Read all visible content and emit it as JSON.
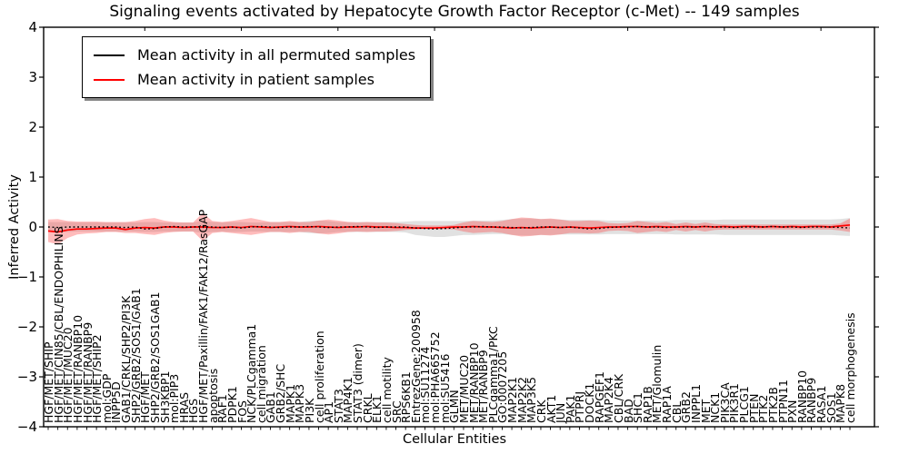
{
  "page": {
    "background": "#ffffff"
  },
  "chart_data": {
    "type": "line",
    "title": "Signaling events activated by Hepatocyte Growth Factor Receptor (c-Met) -- 149 samples",
    "xlabel": "Cellular Entities",
    "ylabel": "Inferred Activity",
    "ylim": [
      -4,
      4
    ],
    "yticks": [
      -4,
      -3,
      -2,
      -1,
      0,
      1,
      2,
      3,
      4
    ],
    "ytick_labels": [
      "−4",
      "−3",
      "−2",
      "−1",
      "0",
      "1",
      "2",
      "3",
      "4"
    ],
    "grid": false,
    "legend_position": "upper left",
    "legend": [
      {
        "label": "Mean activity in all permuted samples",
        "color": "#000000"
      },
      {
        "label": "Mean activity in patient samples",
        "color": "#ff0000"
      }
    ],
    "categories": [
      "HGF/MET/SHIP",
      "HGF/MET/CIN85/CBL/ENDOPHILINS",
      "HGF/MET/MUC20",
      "HGF/MET/RANBP10",
      "HGF/MET/RANBP9",
      "HGF/MET/SHIP2",
      "mol:GDP",
      "INPP5D",
      "GAB1/CRKL/SHP2/PI3K",
      "SHP2/GRB2/SOS1/GAB1",
      "HGF/MET",
      "SHP2/GRB2/SOS1GAB1",
      "SH3KBP1",
      "mol:PIP3",
      "HRAS",
      "HGS",
      "HGF/MET/Paxillin/FAK1/FAK12/RasGAP",
      "apoptosis",
      "RAF1",
      "PDPK1",
      "FOS",
      "NCK/PLCgamma1",
      "cell migration",
      "GAB1",
      "GRB2/SHC",
      "MAPK1",
      "MAPK3",
      "PI3K",
      "cell proliferation",
      "AP1",
      "STAT3",
      "MAP4K1",
      "STAT3 (dimer)",
      "CRKL",
      "ELK1",
      "cell motility",
      "SRC",
      "RPS6KB1",
      "EntrezGene:200958",
      "mol:SU11274",
      "mol:PHA665752",
      "mol:SU5416",
      "GLMN",
      "MET/MUC20",
      "MET/RANBP10",
      "MET/RANBP9",
      "PLCgamma1/PKC",
      "GO:0007205",
      "MAP2K1",
      "MAP2K2",
      "MAP3K5",
      "CRK",
      "AKT1",
      "JUN",
      "PAK1",
      "PTPRJ",
      "DOCK1",
      "RAPGEF1",
      "MAP2K4",
      "CBL/CRK",
      "BAD",
      "SHC1",
      "RAP1B",
      "MET/Glomulin",
      "RAP1A",
      "CBL",
      "GRB2",
      "INPPL1",
      "MET",
      "NCK1",
      "PIK3CA",
      "PIK3R1",
      "PLCG1",
      "PTEN",
      "PTK2",
      "PTK2B",
      "PTPN11",
      "PXN",
      "RANBP10",
      "RANBP9",
      "RASA1",
      "SOS1",
      "MAPK8",
      "cell morphogenesis"
    ],
    "series": [
      {
        "name": "Mean activity in all permuted samples",
        "color": "#000000",
        "style": "dotted",
        "values": [
          0,
          -0.01,
          0,
          0,
          0,
          0,
          0,
          0,
          -0.01,
          0,
          -0.04,
          -0.03,
          0,
          0.01,
          0,
          0,
          0.01,
          0,
          -0.01,
          0,
          -0.02,
          0,
          0.01,
          0,
          -0.01,
          0,
          0,
          0.01,
          0,
          -0.01,
          0,
          0,
          0.01,
          0,
          -0.01,
          0,
          0,
          0,
          -0.02,
          -0.03,
          -0.04,
          -0.03,
          -0.02,
          0,
          0,
          0.01,
          0,
          0,
          -0.01,
          -0.02,
          -0.01,
          0,
          0,
          -0.01,
          0,
          -0.02,
          -0.04,
          -0.03,
          -0.01,
          0,
          0,
          0.01,
          0,
          0,
          -0.01,
          0,
          0,
          0,
          0.01,
          0,
          0,
          -0.01,
          0,
          0,
          0,
          0.01,
          0,
          0,
          -0.01,
          0,
          0,
          0,
          -0.01,
          -0.02
        ]
      },
      {
        "name": "Mean activity in patient samples",
        "color": "#ff0000",
        "style": "solid",
        "values": [
          -0.08,
          -0.1,
          -0.06,
          -0.04,
          -0.04,
          -0.03,
          -0.02,
          -0.02,
          -0.05,
          -0.02,
          -0.01,
          -0.02,
          0,
          0,
          -0.01,
          0,
          0,
          -0.01,
          -0.01,
          0,
          -0.01,
          0.01,
          0,
          -0.01,
          0,
          0.01,
          0,
          0,
          0.01,
          0,
          -0.01,
          0,
          0,
          0.01,
          0,
          0,
          -0.01,
          -0.01,
          -0.02,
          -0.02,
          -0.02,
          -0.01,
          0,
          0,
          0.01,
          0,
          0,
          -0.01,
          -0.02,
          -0.01,
          -0.02,
          -0.01,
          0,
          -0.01,
          0,
          -0.01,
          -0.02,
          -0.01,
          0,
          0,
          0.01,
          0.01,
          0,
          0.01,
          0,
          0,
          0.01,
          0,
          0.01,
          0,
          0.01,
          0,
          0.01,
          0.01,
          0,
          0.01,
          0,
          0.01,
          0,
          0.01,
          0.01,
          0,
          0.02,
          0.04
        ]
      }
    ],
    "bands": [
      {
        "name": "permuted-samples-std-band",
        "color": "#a8a8a8",
        "opacity": 0.35,
        "upper": [
          0.1,
          0.1,
          0.1,
          0.09,
          0.09,
          0.09,
          0.09,
          0.09,
          0.09,
          0.09,
          0.1,
          0.1,
          0.09,
          0.09,
          0.09,
          0.09,
          0.12,
          0.1,
          0.09,
          0.1,
          0.1,
          0.09,
          0.09,
          0.1,
          0.1,
          0.1,
          0.1,
          0.12,
          0.13,
          0.12,
          0.1,
          0.1,
          0.1,
          0.1,
          0.1,
          0.1,
          0.1,
          0.11,
          0.12,
          0.12,
          0.12,
          0.12,
          0.12,
          0.12,
          0.13,
          0.13,
          0.13,
          0.14,
          0.16,
          0.17,
          0.17,
          0.16,
          0.16,
          0.15,
          0.14,
          0.14,
          0.14,
          0.14,
          0.13,
          0.13,
          0.13,
          0.13,
          0.13,
          0.13,
          0.13,
          0.14,
          0.14,
          0.14,
          0.14,
          0.14,
          0.15,
          0.15,
          0.15,
          0.15,
          0.15,
          0.15,
          0.15,
          0.15,
          0.15,
          0.15,
          0.15,
          0.15,
          0.16,
          0.18
        ],
        "lower": [
          -0.1,
          -0.1,
          -0.1,
          -0.09,
          -0.09,
          -0.09,
          -0.09,
          -0.09,
          -0.09,
          -0.09,
          -0.1,
          -0.1,
          -0.09,
          -0.09,
          -0.09,
          -0.09,
          -0.12,
          -0.1,
          -0.09,
          -0.1,
          -0.1,
          -0.09,
          -0.09,
          -0.1,
          -0.1,
          -0.1,
          -0.1,
          -0.12,
          -0.13,
          -0.12,
          -0.1,
          -0.1,
          -0.1,
          -0.1,
          -0.1,
          -0.1,
          -0.1,
          -0.11,
          -0.16,
          -0.18,
          -0.2,
          -0.2,
          -0.18,
          -0.16,
          -0.16,
          -0.15,
          -0.14,
          -0.14,
          -0.16,
          -0.17,
          -0.17,
          -0.16,
          -0.16,
          -0.15,
          -0.15,
          -0.15,
          -0.15,
          -0.15,
          -0.14,
          -0.14,
          -0.14,
          -0.14,
          -0.14,
          -0.14,
          -0.14,
          -0.15,
          -0.15,
          -0.15,
          -0.15,
          -0.15,
          -0.16,
          -0.16,
          -0.16,
          -0.16,
          -0.16,
          -0.16,
          -0.16,
          -0.16,
          -0.16,
          -0.16,
          -0.16,
          -0.16,
          -0.17,
          -0.18
        ]
      },
      {
        "name": "patient-samples-std-band",
        "color": "#ff3333",
        "opacity": 0.33,
        "upper": [
          0.15,
          0.16,
          0.12,
          0.11,
          0.11,
          0.11,
          0.1,
          0.1,
          0.1,
          0.12,
          0.16,
          0.18,
          0.13,
          0.1,
          0.09,
          0.09,
          0.28,
          0.12,
          0.1,
          0.12,
          0.15,
          0.18,
          0.14,
          0.1,
          0.1,
          0.12,
          0.1,
          0.1,
          0.13,
          0.15,
          0.13,
          0.1,
          0.09,
          0.1,
          0.09,
          0.09,
          0.08,
          0.06,
          0.04,
          0.03,
          0.03,
          0.03,
          0.04,
          0.09,
          0.12,
          0.11,
          0.1,
          0.12,
          0.16,
          0.19,
          0.18,
          0.16,
          0.17,
          0.15,
          0.12,
          0.12,
          0.13,
          0.12,
          0.08,
          0.07,
          0.08,
          0.12,
          0.1,
          0.08,
          0.1,
          0.06,
          0.09,
          0.06,
          0.09,
          0.06,
          0.05,
          0.05,
          0.05,
          0.05,
          0.05,
          0.05,
          0.05,
          0.05,
          0.05,
          0.05,
          0.05,
          0.05,
          0.07,
          0.17
        ],
        "lower": [
          -0.3,
          -0.35,
          -0.22,
          -0.15,
          -0.13,
          -0.12,
          -0.1,
          -0.1,
          -0.12,
          -0.12,
          -0.14,
          -0.16,
          -0.12,
          -0.1,
          -0.09,
          -0.09,
          -0.28,
          -0.12,
          -0.1,
          -0.12,
          -0.14,
          -0.16,
          -0.13,
          -0.1,
          -0.1,
          -0.12,
          -0.1,
          -0.1,
          -0.13,
          -0.15,
          -0.13,
          -0.1,
          -0.09,
          -0.1,
          -0.09,
          -0.09,
          -0.08,
          -0.06,
          -0.05,
          -0.04,
          -0.04,
          -0.04,
          -0.05,
          -0.09,
          -0.12,
          -0.11,
          -0.1,
          -0.12,
          -0.16,
          -0.19,
          -0.18,
          -0.16,
          -0.17,
          -0.15,
          -0.12,
          -0.12,
          -0.13,
          -0.12,
          -0.08,
          -0.07,
          -0.08,
          -0.12,
          -0.1,
          -0.08,
          -0.1,
          -0.06,
          -0.09,
          -0.06,
          -0.09,
          -0.06,
          -0.05,
          -0.05,
          -0.05,
          -0.05,
          -0.05,
          -0.05,
          -0.05,
          -0.05,
          -0.05,
          -0.05,
          -0.05,
          -0.05,
          -0.07,
          -0.1
        ]
      }
    ]
  }
}
